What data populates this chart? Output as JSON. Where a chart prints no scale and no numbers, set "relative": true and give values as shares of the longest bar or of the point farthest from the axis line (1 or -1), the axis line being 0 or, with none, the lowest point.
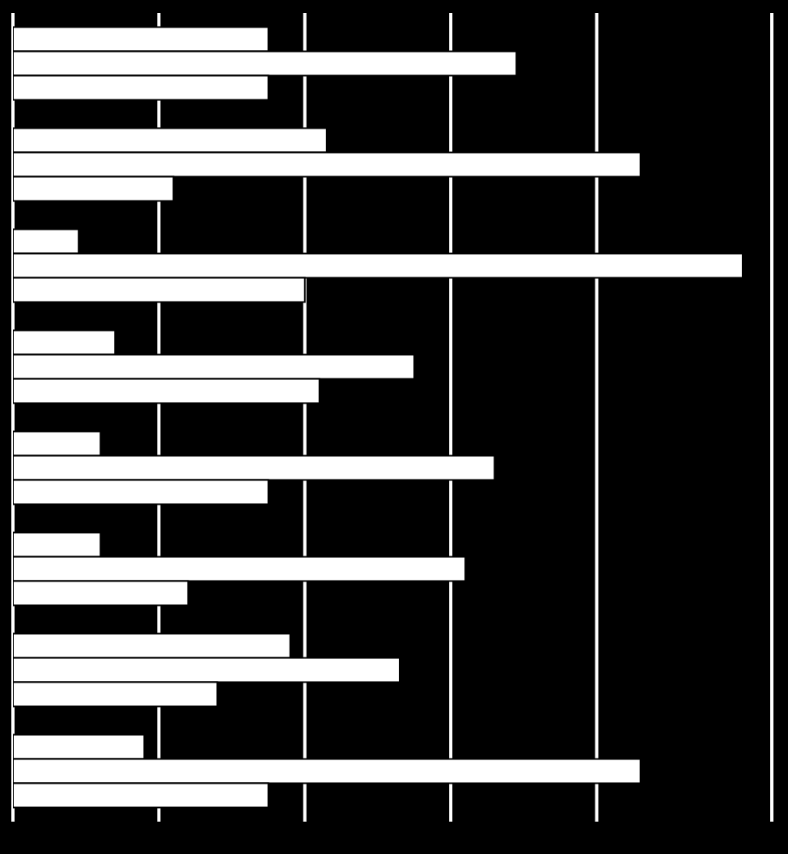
{
  "chart_data": {
    "type": "bar",
    "orientation": "horizontal",
    "relative": true,
    "grid": "x",
    "categories": [
      null,
      null,
      null,
      null,
      null,
      null,
      null,
      null
    ],
    "series": [
      {
        "color": "#ffffff",
        "values": [
          0.35,
          0.43,
          0.09,
          0.14,
          0.12,
          0.12,
          0.38,
          0.18
        ]
      },
      {
        "color": "#ffffff",
        "values": [
          0.69,
          0.86,
          1,
          0.55,
          0.66,
          0.62,
          0.53,
          0.86
        ]
      },
      {
        "color": "#ffffff",
        "values": [
          0.35,
          0.22,
          0.4,
          0.42,
          0.35,
          0.24,
          0.28,
          0.35
        ]
      }
    ]
  }
}
